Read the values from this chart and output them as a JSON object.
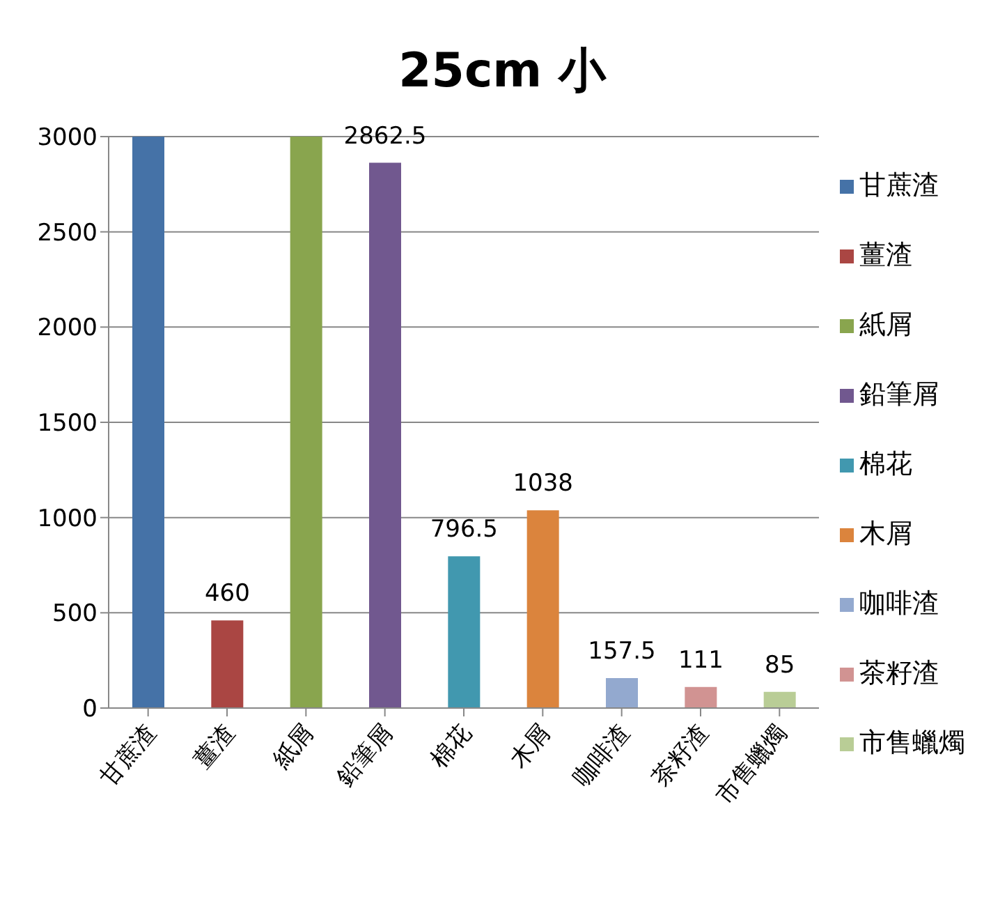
{
  "chart_data": {
    "type": "bar",
    "title": "25cm 小",
    "categories": [
      "甘蔗渣",
      "薑渣",
      "紙屑",
      "鉛筆屑",
      "棉花",
      "木屑",
      "咖啡渣",
      "茶籽渣",
      "市售蠟燭"
    ],
    "series": [
      {
        "name": "甘蔗渣",
        "color": "#4572a7",
        "values": [
          3000,
          null,
          null,
          null,
          null,
          null,
          null,
          null,
          null
        ],
        "value_labels": [
          null,
          null,
          null,
          null,
          null,
          null,
          null,
          null,
          null
        ]
      },
      {
        "name": "薑渣",
        "color": "#aa4643",
        "values": [
          null,
          460,
          null,
          null,
          null,
          null,
          null,
          null,
          null
        ],
        "value_labels": [
          null,
          "460",
          null,
          null,
          null,
          null,
          null,
          null,
          null
        ]
      },
      {
        "name": "紙屑",
        "color": "#89a54e",
        "values": [
          null,
          null,
          3000,
          null,
          null,
          null,
          null,
          null,
          null
        ],
        "value_labels": [
          null,
          null,
          null,
          null,
          null,
          null,
          null,
          null,
          null
        ]
      },
      {
        "name": "鉛筆屑",
        "color": "#71588f",
        "values": [
          null,
          null,
          null,
          2862.5,
          null,
          null,
          null,
          null,
          null
        ],
        "value_labels": [
          null,
          null,
          null,
          "2862.5",
          null,
          null,
          null,
          null,
          null
        ]
      },
      {
        "name": "棉花",
        "color": "#4198af",
        "values": [
          null,
          null,
          null,
          null,
          796.5,
          null,
          null,
          null,
          null
        ],
        "value_labels": [
          null,
          null,
          null,
          null,
          "796.5",
          null,
          null,
          null,
          null
        ]
      },
      {
        "name": "木屑",
        "color": "#db843d",
        "values": [
          null,
          null,
          null,
          null,
          null,
          1038,
          null,
          null,
          null
        ],
        "value_labels": [
          null,
          null,
          null,
          null,
          null,
          "1038",
          null,
          null,
          null
        ]
      },
      {
        "name": "咖啡渣",
        "color": "#93a9cf",
        "values": [
          null,
          null,
          null,
          null,
          null,
          null,
          157.5,
          null,
          null
        ],
        "value_labels": [
          null,
          null,
          null,
          null,
          null,
          null,
          "157.5",
          null,
          null
        ]
      },
      {
        "name": "茶籽渣",
        "color": "#d19392",
        "values": [
          null,
          null,
          null,
          null,
          null,
          null,
          null,
          111,
          null
        ],
        "value_labels": [
          null,
          null,
          null,
          null,
          null,
          null,
          null,
          "111",
          null
        ]
      },
      {
        "name": "市售蠟燭",
        "color": "#b9cd96",
        "values": [
          null,
          null,
          null,
          null,
          null,
          null,
          null,
          null,
          85
        ],
        "value_labels": [
          null,
          null,
          null,
          null,
          null,
          null,
          null,
          null,
          "85"
        ]
      }
    ],
    "stacked": true,
    "ylim": [
      0,
      3000
    ],
    "yticks": [
      0,
      500,
      1000,
      1500,
      2000,
      2500,
      3000
    ],
    "grid": "y",
    "legend": "right"
  }
}
